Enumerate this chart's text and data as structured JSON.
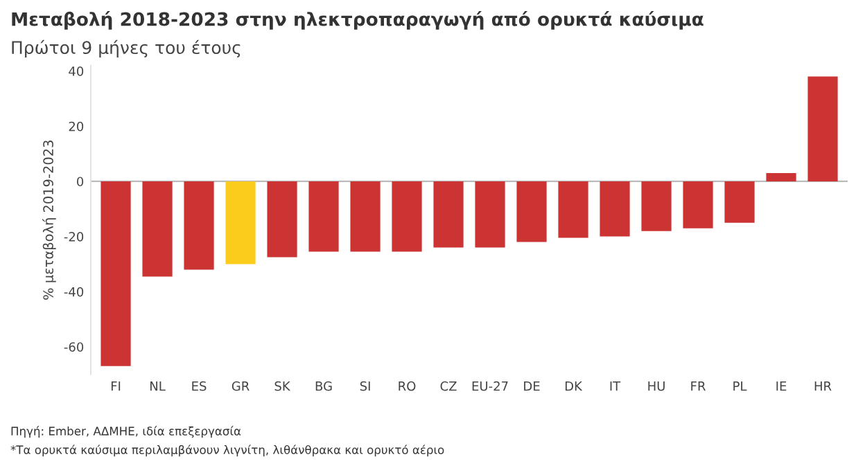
{
  "chart_data": {
    "type": "bar",
    "title": "Μεταβολή 2018-2023 στην ηλεκτροπαραγωγή από ορυκτά καύσιμα",
    "subtitle": "Πρώτοι 9 μήνες του έτους",
    "ylabel": "% μεταβολή 2019-2023",
    "categories": [
      "FI",
      "NL",
      "ES",
      "GR",
      "SK",
      "BG",
      "SI",
      "RO",
      "CZ",
      "EU-27",
      "DE",
      "DK",
      "IT",
      "HU",
      "FR",
      "PL",
      "IE",
      "HR"
    ],
    "values": [
      -67,
      -34.5,
      -32,
      -30,
      -27.5,
      -25.5,
      -25.5,
      -25.5,
      -24,
      -24,
      -22,
      -20.5,
      -20,
      -18,
      -17,
      -15,
      3,
      38
    ],
    "colors": [
      "#cc3333",
      "#cc3333",
      "#cc3333",
      "#fccc1c",
      "#cc3333",
      "#cc3333",
      "#cc3333",
      "#cc3333",
      "#cc3333",
      "#cc3333",
      "#cc3333",
      "#cc3333",
      "#cc3333",
      "#cc3333",
      "#cc3333",
      "#cc3333",
      "#cc3333",
      "#cc3333"
    ],
    "ylim": [
      -70,
      42
    ],
    "yticks": [
      -60,
      -40,
      -20,
      0,
      20,
      40
    ],
    "grid": false,
    "ref_lines": [
      {
        "axis": "y",
        "value": 0,
        "color": "#bbbbbb"
      }
    ],
    "annotations": [
      "Πηγή: Ember, ΑΔΜΗΕ, ιδία επεξεργασία",
      "*Τα ορυκτά καύσιμα περιλαμβάνουν λιγνίτη, λιθάνθρακα και ορυκτό αέριο"
    ]
  }
}
